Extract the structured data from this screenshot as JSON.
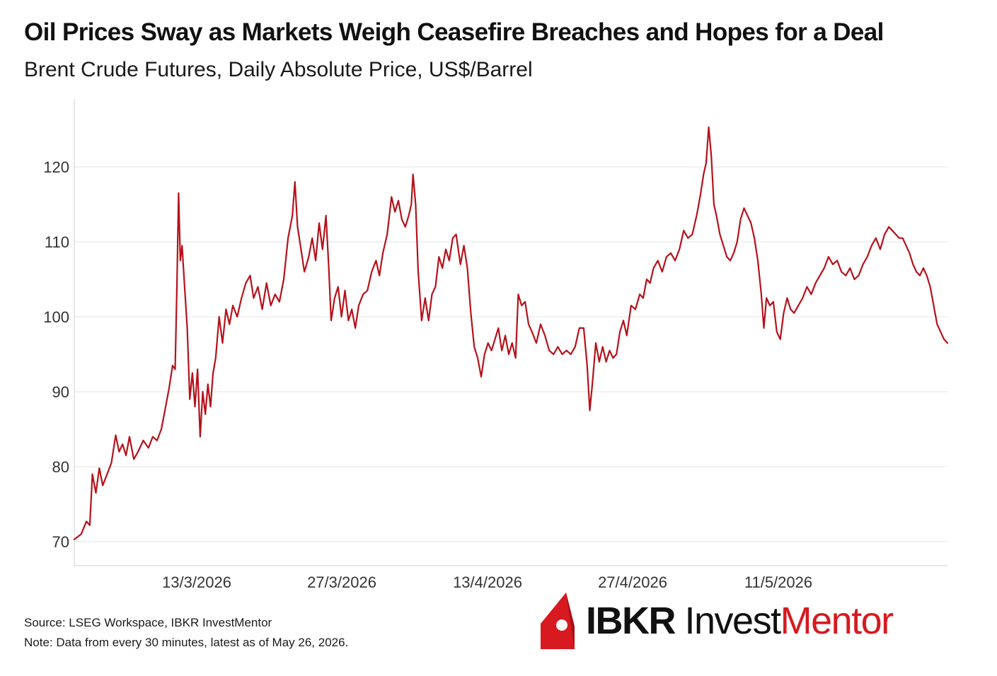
{
  "header": {
    "title": "Oil Prices Sway as Markets Weigh Ceasefire Breaches and Hopes for a Deal",
    "subtitle": "Brent Crude Futures, Daily Absolute Price, US$/Barrel"
  },
  "footer": {
    "source": "Source: LSEG Workspace, IBKR InvestMentor",
    "note": "Note: Data from every 30 minutes, latest as of May 26, 2026."
  },
  "logo": {
    "part1": "IBKR",
    "part2": "Invest",
    "part3": "Mentor",
    "colors": {
      "dark": "#111111",
      "accent": "#d71920"
    }
  },
  "chart_data": {
    "type": "line",
    "title": "Oil Prices Sway as Markets Weigh Ceasefire Breaches and Hopes for a Deal",
    "subtitle": "Brent Crude Futures, Daily Absolute Price, US$/Barrel",
    "xlabel": "",
    "ylabel": "",
    "ylim": [
      67,
      130
    ],
    "y_ticks": [
      70,
      80,
      90,
      100,
      110,
      120
    ],
    "x_ticks": [
      "13/3/2026",
      "27/3/2026",
      "13/4/2026",
      "27/4/2026",
      "11/5/2026"
    ],
    "grid": "horizontal",
    "line_color": "#b5121b",
    "series": [
      {
        "name": "",
        "points": [
          [
            0.0,
            70.3
          ],
          [
            0.8,
            71.0
          ],
          [
            1.4,
            72.7
          ],
          [
            1.8,
            72.2
          ],
          [
            2.1,
            79.0
          ],
          [
            2.5,
            76.5
          ],
          [
            2.9,
            79.8
          ],
          [
            3.3,
            77.5
          ],
          [
            3.8,
            79.0
          ],
          [
            4.3,
            80.5
          ],
          [
            4.8,
            84.2
          ],
          [
            5.2,
            82.0
          ],
          [
            5.6,
            83.0
          ],
          [
            6.0,
            81.5
          ],
          [
            6.4,
            84.0
          ],
          [
            6.9,
            81.0
          ],
          [
            7.4,
            82.0
          ],
          [
            8.0,
            83.5
          ],
          [
            8.6,
            82.5
          ],
          [
            9.1,
            84.0
          ],
          [
            9.6,
            83.5
          ],
          [
            10.1,
            85.0
          ],
          [
            10.6,
            88.0
          ],
          [
            11.0,
            90.5
          ],
          [
            11.4,
            93.5
          ],
          [
            11.7,
            93.0
          ],
          [
            11.9,
            104.0
          ],
          [
            12.1,
            116.5
          ],
          [
            12.3,
            107.5
          ],
          [
            12.5,
            109.5
          ],
          [
            12.8,
            104.0
          ],
          [
            13.1,
            98.5
          ],
          [
            13.4,
            89.0
          ],
          [
            13.7,
            92.5
          ],
          [
            14.0,
            88.0
          ],
          [
            14.3,
            93.0
          ],
          [
            14.6,
            84.0
          ],
          [
            14.9,
            90.0
          ],
          [
            15.2,
            87.0
          ],
          [
            15.5,
            91.0
          ],
          [
            15.8,
            88.0
          ],
          [
            16.1,
            92.5
          ],
          [
            16.4,
            94.5
          ],
          [
            16.8,
            100.0
          ],
          [
            17.2,
            96.5
          ],
          [
            17.6,
            101.0
          ],
          [
            18.0,
            99.0
          ],
          [
            18.4,
            101.5
          ],
          [
            18.9,
            100.0
          ],
          [
            19.4,
            102.5
          ],
          [
            19.9,
            104.5
          ],
          [
            20.4,
            105.5
          ],
          [
            20.8,
            102.5
          ],
          [
            21.3,
            104.0
          ],
          [
            21.8,
            101.0
          ],
          [
            22.3,
            104.5
          ],
          [
            22.8,
            101.5
          ],
          [
            23.3,
            103.0
          ],
          [
            23.8,
            102.0
          ],
          [
            24.3,
            105.0
          ],
          [
            24.8,
            110.5
          ],
          [
            25.3,
            113.5
          ],
          [
            25.6,
            118.0
          ],
          [
            25.9,
            112.0
          ],
          [
            26.3,
            109.0
          ],
          [
            26.7,
            106.0
          ],
          [
            27.2,
            108.0
          ],
          [
            27.6,
            110.5
          ],
          [
            28.0,
            107.5
          ],
          [
            28.4,
            112.5
          ],
          [
            28.8,
            109.0
          ],
          [
            29.2,
            113.5
          ],
          [
            29.5,
            107.0
          ],
          [
            29.8,
            99.5
          ],
          [
            30.2,
            102.5
          ],
          [
            30.6,
            104.0
          ],
          [
            31.0,
            100.0
          ],
          [
            31.4,
            103.5
          ],
          [
            31.8,
            99.5
          ],
          [
            32.2,
            101.0
          ],
          [
            32.6,
            98.5
          ],
          [
            33.0,
            101.5
          ],
          [
            33.5,
            103.0
          ],
          [
            34.0,
            103.5
          ],
          [
            34.5,
            106.0
          ],
          [
            35.0,
            107.5
          ],
          [
            35.4,
            105.5
          ],
          [
            35.8,
            108.5
          ],
          [
            36.3,
            111.0
          ],
          [
            36.8,
            116.0
          ],
          [
            37.2,
            114.0
          ],
          [
            37.6,
            115.5
          ],
          [
            38.0,
            113.0
          ],
          [
            38.4,
            112.0
          ],
          [
            38.8,
            113.5
          ],
          [
            39.1,
            115.0
          ],
          [
            39.3,
            119.0
          ],
          [
            39.6,
            115.0
          ],
          [
            39.9,
            106.0
          ],
          [
            40.3,
            99.5
          ],
          [
            40.7,
            102.5
          ],
          [
            41.1,
            99.5
          ],
          [
            41.5,
            103.0
          ],
          [
            41.9,
            104.0
          ],
          [
            42.3,
            108.0
          ],
          [
            42.7,
            106.5
          ],
          [
            43.1,
            109.0
          ],
          [
            43.5,
            107.5
          ],
          [
            43.9,
            110.5
          ],
          [
            44.3,
            111.0
          ],
          [
            44.8,
            107.0
          ],
          [
            45.2,
            109.5
          ],
          [
            45.6,
            106.5
          ],
          [
            46.0,
            100.5
          ],
          [
            46.4,
            96.0
          ],
          [
            46.8,
            94.5
          ],
          [
            47.2,
            92.0
          ],
          [
            47.6,
            95.0
          ],
          [
            48.0,
            96.5
          ],
          [
            48.4,
            95.5
          ],
          [
            48.8,
            97.0
          ],
          [
            49.2,
            98.5
          ],
          [
            49.6,
            95.5
          ],
          [
            50.0,
            97.5
          ],
          [
            50.4,
            95.0
          ],
          [
            50.8,
            96.5
          ],
          [
            51.2,
            94.5
          ],
          [
            51.5,
            103.0
          ],
          [
            51.9,
            101.5
          ],
          [
            52.3,
            102.0
          ],
          [
            52.7,
            99.0
          ],
          [
            53.1,
            98.0
          ],
          [
            53.6,
            96.5
          ],
          [
            54.1,
            99.0
          ],
          [
            54.6,
            97.5
          ],
          [
            55.1,
            95.5
          ],
          [
            55.6,
            95.0
          ],
          [
            56.1,
            96.0
          ],
          [
            56.6,
            95.0
          ],
          [
            57.1,
            95.5
          ],
          [
            57.6,
            95.0
          ],
          [
            58.1,
            96.0
          ],
          [
            58.6,
            98.5
          ],
          [
            59.1,
            98.5
          ],
          [
            59.5,
            93.5
          ],
          [
            59.8,
            87.5
          ],
          [
            60.1,
            91.0
          ],
          [
            60.5,
            96.5
          ],
          [
            60.9,
            94.0
          ],
          [
            61.3,
            96.0
          ],
          [
            61.7,
            94.0
          ],
          [
            62.1,
            95.5
          ],
          [
            62.5,
            94.5
          ],
          [
            62.9,
            95.0
          ],
          [
            63.3,
            98.0
          ],
          [
            63.7,
            99.5
          ],
          [
            64.1,
            97.5
          ],
          [
            64.6,
            101.5
          ],
          [
            65.1,
            101.0
          ],
          [
            65.6,
            103.0
          ],
          [
            66.0,
            102.5
          ],
          [
            66.4,
            105.0
          ],
          [
            66.8,
            104.5
          ],
          [
            67.2,
            106.5
          ],
          [
            67.7,
            107.5
          ],
          [
            68.2,
            106.0
          ],
          [
            68.7,
            108.0
          ],
          [
            69.2,
            108.5
          ],
          [
            69.7,
            107.5
          ],
          [
            70.2,
            109.0
          ],
          [
            70.7,
            111.5
          ],
          [
            71.2,
            110.5
          ],
          [
            71.7,
            111.0
          ],
          [
            72.2,
            113.5
          ],
          [
            72.6,
            116.0
          ],
          [
            73.0,
            119.0
          ],
          [
            73.3,
            120.5
          ],
          [
            73.6,
            125.3
          ],
          [
            73.9,
            121.5
          ],
          [
            74.2,
            115.0
          ],
          [
            74.5,
            113.5
          ],
          [
            74.9,
            111.0
          ],
          [
            75.3,
            109.5
          ],
          [
            75.7,
            108.0
          ],
          [
            76.1,
            107.5
          ],
          [
            76.5,
            108.5
          ],
          [
            76.9,
            110.0
          ],
          [
            77.3,
            113.0
          ],
          [
            77.7,
            114.5
          ],
          [
            78.1,
            113.5
          ],
          [
            78.5,
            112.5
          ],
          [
            78.9,
            110.5
          ],
          [
            79.3,
            107.5
          ],
          [
            79.7,
            103.0
          ],
          [
            80.0,
            98.5
          ],
          [
            80.3,
            102.5
          ],
          [
            80.7,
            101.5
          ],
          [
            81.1,
            102.0
          ],
          [
            81.5,
            98.0
          ],
          [
            81.9,
            97.0
          ],
          [
            82.3,
            100.5
          ],
          [
            82.7,
            102.5
          ],
          [
            83.1,
            101.0
          ],
          [
            83.5,
            100.5
          ],
          [
            84.0,
            101.5
          ],
          [
            84.5,
            102.5
          ],
          [
            85.0,
            104.0
          ],
          [
            85.5,
            103.0
          ],
          [
            86.0,
            104.5
          ],
          [
            86.5,
            105.5
          ],
          [
            87.0,
            106.5
          ],
          [
            87.5,
            108.0
          ],
          [
            88.0,
            107.0
          ],
          [
            88.5,
            107.5
          ],
          [
            89.0,
            106.0
          ],
          [
            89.5,
            105.5
          ],
          [
            90.0,
            106.5
          ],
          [
            90.5,
            105.0
          ],
          [
            91.0,
            105.5
          ],
          [
            91.5,
            107.0
          ],
          [
            92.0,
            108.0
          ],
          [
            92.5,
            109.5
          ],
          [
            93.0,
            110.5
          ],
          [
            93.5,
            109.0
          ],
          [
            94.0,
            111.0
          ],
          [
            94.5,
            112.0
          ],
          [
            94.9,
            111.5
          ],
          [
            95.3,
            111.0
          ],
          [
            95.7,
            110.5
          ],
          [
            96.1,
            110.5
          ],
          [
            96.5,
            109.5
          ],
          [
            96.9,
            108.5
          ],
          [
            97.3,
            107.0
          ],
          [
            97.7,
            106.0
          ],
          [
            98.1,
            105.5
          ],
          [
            98.5,
            106.5
          ],
          [
            98.9,
            105.5
          ],
          [
            99.3,
            104.0
          ],
          [
            99.7,
            101.5
          ],
          [
            100.1,
            99.0
          ],
          [
            100.5,
            98.0
          ],
          [
            100.9,
            97.0
          ],
          [
            101.3,
            96.5
          ]
        ]
      }
    ]
  }
}
